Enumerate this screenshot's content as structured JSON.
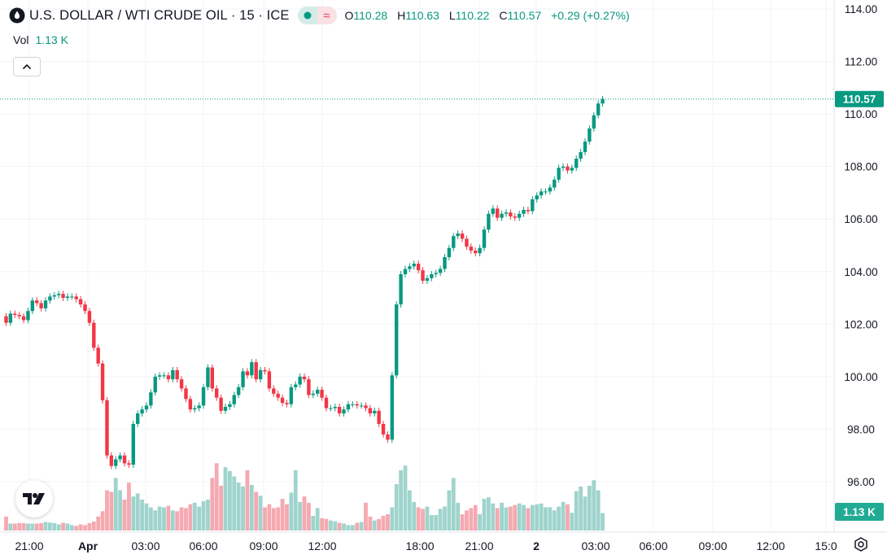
{
  "header": {
    "symbol_title": "U.S. DOLLAR / WTI CRUDE OIL · 15 · ICE",
    "market_status_icon": "dot-icon",
    "wave_icon_glyph": "≈",
    "ohlc": {
      "o_label": "O",
      "o_value": "110.28",
      "h_label": "H",
      "h_value": "110.63",
      "l_label": "L",
      "l_value": "110.22",
      "c_label": "C",
      "c_value": "110.57",
      "change": "+0.29 (+0.27%)"
    }
  },
  "volume_legend": {
    "label": "Vol",
    "value": "1.13 K"
  },
  "price_label": "110.57",
  "volume_label": "1.13 K",
  "colors": {
    "up": "#089981",
    "down": "#f23645",
    "vol_up": "#9fd4cd",
    "vol_down": "#f5a9b0",
    "grid": "#f0f3fa",
    "text": "#131722"
  },
  "chart_data": {
    "type": "candlestick",
    "title": "U.S. DOLLAR / WTI CRUDE OIL · 15 · ICE",
    "ylim": [
      95,
      114.5
    ],
    "y_ticks": [
      "114.00",
      "112.00",
      "110.00",
      "108.00",
      "106.00",
      "104.00",
      "102.00",
      "100.00",
      "98.00",
      "96.00"
    ],
    "x_ticks": [
      "21:00",
      "Apr",
      "03:00",
      "06:00",
      "09:00",
      "12:00",
      "18:00",
      "21:00",
      "2",
      "03:00",
      "06:00",
      "09:00",
      "12:00",
      "15:0"
    ],
    "last_price": 110.57,
    "close": [
      102.05,
      102.4,
      102.35,
      102.3,
      102.15,
      102.5,
      102.9,
      102.8,
      102.6,
      102.9,
      103.05,
      103.1,
      103.15,
      103.0,
      103.05,
      103.05,
      102.95,
      102.75,
      102.5,
      102.05,
      101.1,
      100.5,
      99.1,
      97.0,
      96.6,
      96.85,
      97.0,
      96.7,
      96.65,
      98.2,
      98.6,
      98.75,
      98.9,
      99.4,
      100.0,
      100.05,
      100.05,
      99.9,
      100.25,
      99.9,
      99.55,
      99.15,
      98.75,
      98.8,
      98.9,
      99.6,
      100.35,
      99.55,
      99.2,
      98.7,
      98.85,
      98.95,
      99.3,
      99.6,
      100.2,
      100.05,
      100.55,
      99.9,
      100.25,
      100.2,
      99.55,
      99.35,
      99.2,
      99.0,
      98.95,
      99.6,
      99.7,
      100.0,
      99.9,
      99.3,
      99.35,
      99.5,
      99.2,
      98.8,
      98.8,
      98.85,
      98.6,
      98.75,
      98.95,
      98.95,
      98.9,
      98.9,
      98.8,
      98.6,
      98.7,
      98.2,
      97.8,
      97.6,
      100.05,
      102.75,
      103.9,
      104.1,
      104.2,
      104.3,
      104.05,
      103.65,
      103.75,
      103.9,
      103.95,
      104.1,
      104.55,
      104.9,
      105.35,
      105.45,
      105.25,
      104.95,
      104.8,
      104.7,
      104.9,
      105.6,
      106.2,
      106.4,
      106.05,
      106.2,
      106.25,
      106.1,
      106.05,
      106.2,
      106.35,
      106.3,
      106.75,
      106.9,
      107.05,
      107.05,
      107.2,
      107.5,
      107.95,
      108.0,
      107.85,
      107.95,
      108.3,
      108.55,
      108.95,
      109.45,
      109.95,
      110.4,
      110.57
    ],
    "volume_k": [
      0.9,
      0.45,
      0.45,
      0.48,
      0.48,
      0.45,
      0.45,
      0.45,
      0.48,
      0.55,
      0.52,
      0.48,
      0.4,
      0.5,
      0.45,
      0.35,
      0.3,
      0.4,
      0.35,
      0.48,
      0.58,
      0.9,
      1.25,
      2.6,
      2.5,
      3.4,
      2.6,
      2.0,
      3.1,
      2.2,
      2.4,
      2.0,
      1.75,
      1.5,
      1.3,
      1.55,
      1.5,
      1.6,
      1.3,
      1.25,
      1.5,
      1.45,
      1.7,
      1.8,
      1.55,
      1.9,
      2.0,
      3.4,
      4.35,
      2.9,
      4.1,
      3.85,
      3.5,
      3.1,
      2.85,
      3.9,
      2.95,
      2.5,
      2.25,
      1.5,
      1.7,
      1.45,
      1.5,
      2.05,
      1.7,
      2.45,
      3.9,
      1.85,
      2.2,
      1.8,
      0.95,
      1.45,
      0.8,
      0.75,
      0.65,
      0.6,
      0.5,
      0.45,
      0.35,
      0.35,
      0.5,
      0.55,
      1.8,
      0.9,
      0.65,
      0.75,
      0.95,
      1.05,
      1.5,
      3.0,
      3.9,
      4.2,
      2.6,
      1.85,
      1.5,
      1.4,
      1.55,
      1.0,
      1.0,
      1.4,
      1.55,
      2.6,
      3.4,
      1.8,
      1.05,
      1.3,
      1.45,
      1.65,
      1.05,
      2.05,
      2.15,
      1.75,
      1.45,
      1.8,
      1.5,
      1.55,
      1.65,
      1.75,
      1.65,
      1.45,
      1.65,
      1.7,
      1.75,
      1.5,
      1.5,
      1.3,
      1.55,
      1.85,
      1.7,
      1.15,
      2.55,
      2.85,
      2.2,
      2.9,
      3.25,
      2.6,
      1.13
    ]
  }
}
